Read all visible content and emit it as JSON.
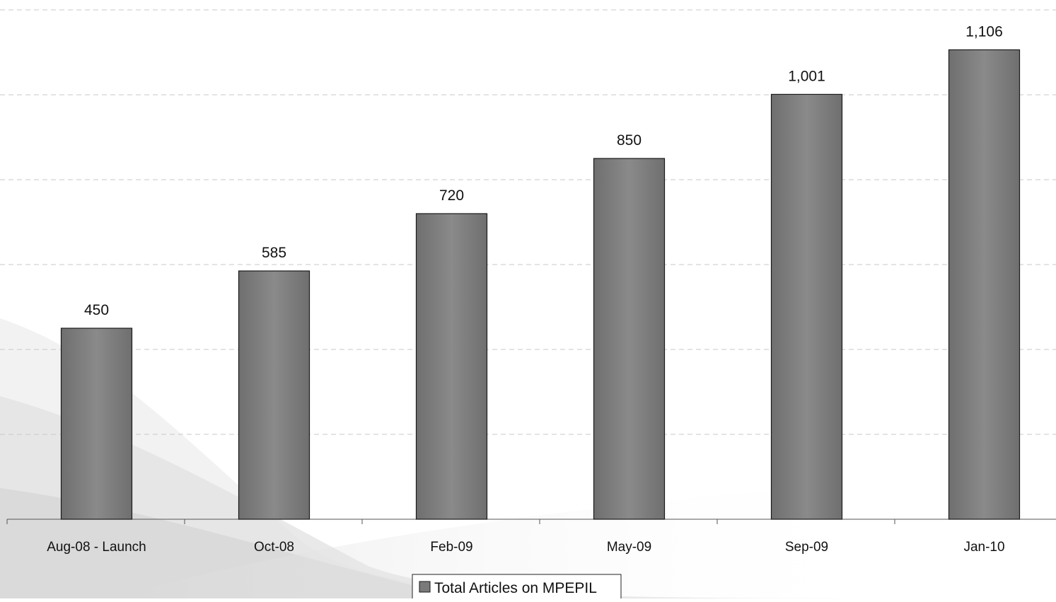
{
  "chart_data": {
    "type": "bar",
    "categories": [
      "Aug-08 - Launch",
      "Oct-08",
      "Feb-09",
      "May-09",
      "Sep-09",
      "Jan-10"
    ],
    "series": [
      {
        "name": "Total Articles on MPEPIL",
        "values": [
          450,
          585,
          720,
          850,
          1001,
          1106
        ],
        "data_labels": [
          "450",
          "585",
          "720",
          "850",
          "1,001",
          "1,106"
        ]
      }
    ],
    "title": "",
    "xlabel": "",
    "ylabel": "",
    "ylim": [
      0,
      1200
    ],
    "grid": true,
    "legend_position": "bottom",
    "colors": {
      "bar_fill": "#7a7a7a",
      "bar_stroke": "#1a1a1a",
      "grid": "#c8c8c8",
      "axis": "#555555",
      "text": "#111111"
    }
  }
}
